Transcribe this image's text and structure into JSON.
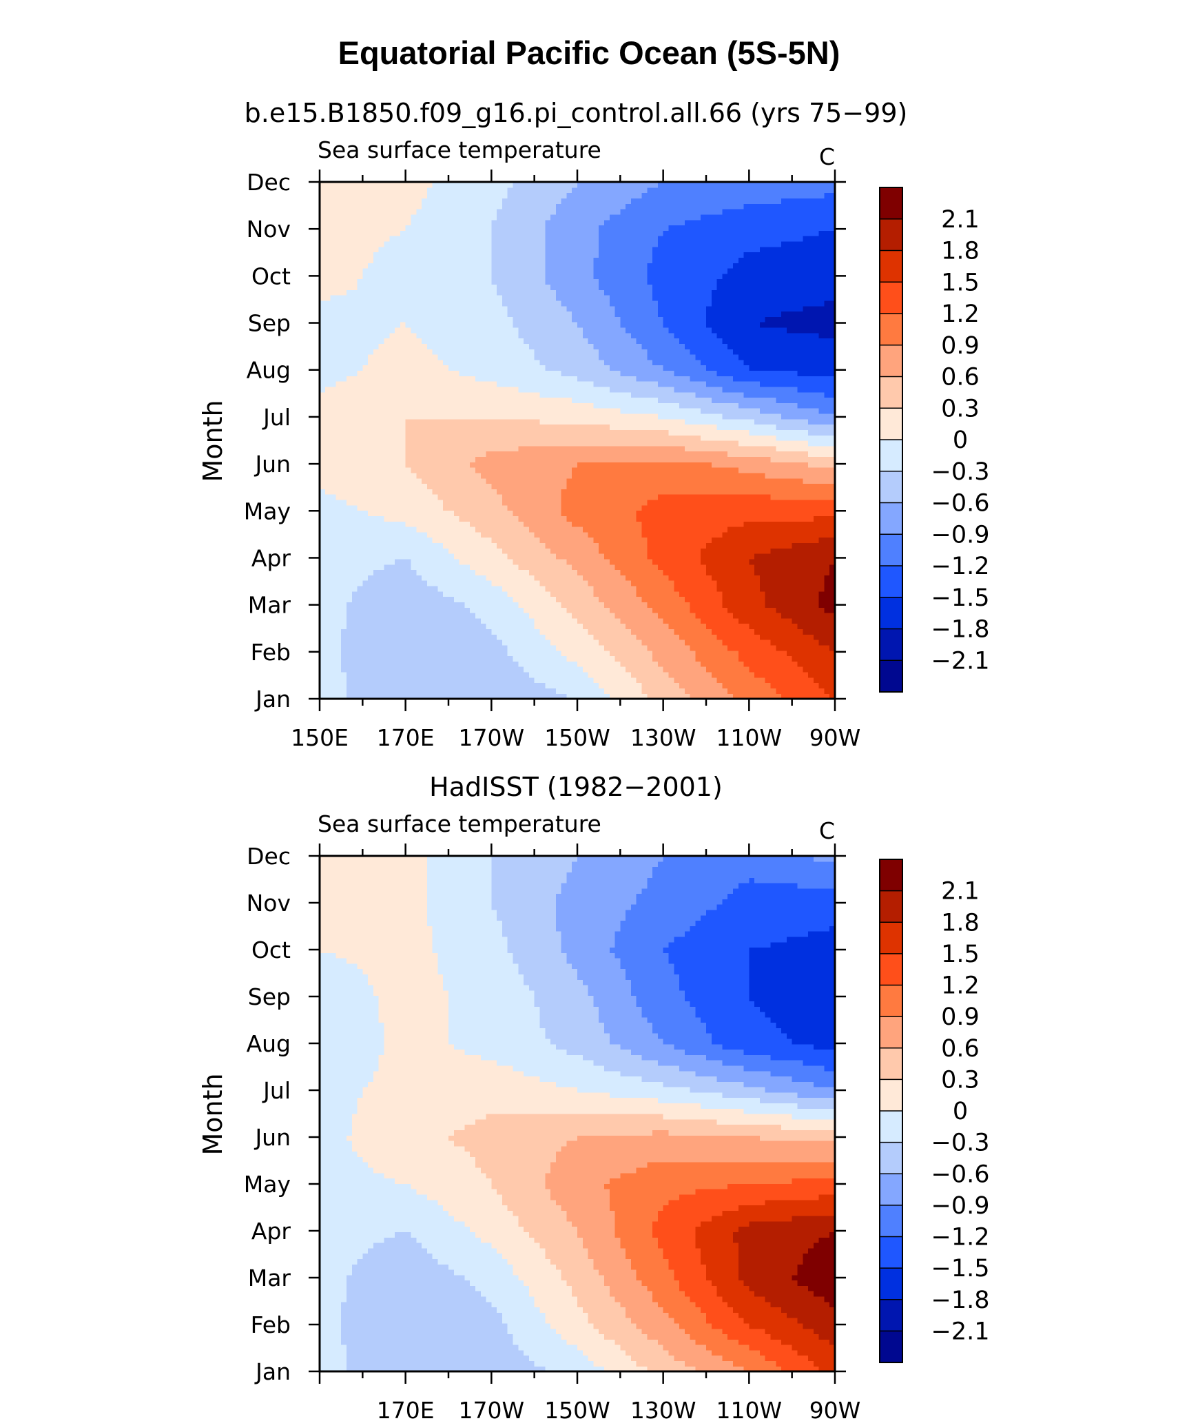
{
  "figure": {
    "title": "Equatorial Pacific Ocean (5S-5N)"
  },
  "colorbar": {
    "levels": [
      -2.1,
      -1.8,
      -1.5,
      -1.2,
      -0.9,
      -0.6,
      -0.3,
      0,
      0.3,
      0.6,
      0.9,
      1.2,
      1.5,
      1.8,
      2.1
    ],
    "labels": [
      "2.1",
      "1.8",
      "1.5",
      "1.2",
      "0.9",
      "0.6",
      "0.3",
      "0",
      "−0.3",
      "−0.6",
      "−0.9",
      "−1.2",
      "−1.5",
      "−1.8",
      "−2.1"
    ],
    "colors": [
      "#7f0000",
      "#b41e00",
      "#de3300",
      "#ff4f1a",
      "#ff7a40",
      "#ffa47d",
      "#ffc9ac",
      "#ffe9d8",
      "#d6ebff",
      "#b4ccfc",
      "#84a7ff",
      "#4f80ff",
      "#1f57ff",
      "#0030e0",
      "#0016b0",
      "#000890"
    ]
  },
  "chart_data": [
    {
      "type": "heatmap",
      "title": "b.e15.B1850.f09_g16.pi_control.all.66 (yrs 75−99)",
      "subtitle_left": "Sea surface temperature",
      "subtitle_right": "C",
      "ylabel": "Month",
      "x_tick_labels": [
        "150E",
        "170E",
        "170W",
        "150W",
        "130W",
        "110W",
        "90W"
      ],
      "y_tick_labels": [
        "Jan",
        "Feb",
        "Mar",
        "Apr",
        "May",
        "Jun",
        "Jul",
        "Aug",
        "Sep",
        "Oct",
        "Nov",
        "Dec"
      ],
      "xlim": [
        150,
        270
      ],
      "x": [
        150,
        170,
        190,
        210,
        230,
        250,
        270
      ],
      "months": [
        "Jan",
        "Feb",
        "Mar",
        "Apr",
        "May",
        "Jun",
        "Jul",
        "Aug",
        "Sep",
        "Oct",
        "Nov",
        "Dec"
      ],
      "values": [
        [
          -0.2,
          -0.5,
          -0.5,
          -0.3,
          0.4,
          1.0,
          1.5
        ],
        [
          -0.2,
          -0.6,
          -0.4,
          0.1,
          0.7,
          1.3,
          1.8
        ],
        [
          -0.2,
          -0.5,
          -0.2,
          0.4,
          1.0,
          1.7,
          2.2
        ],
        [
          -0.2,
          -0.3,
          0.2,
          0.7,
          1.3,
          1.8,
          2.1
        ],
        [
          -0.1,
          0.1,
          0.5,
          1.0,
          1.3,
          1.4,
          1.4
        ],
        [
          0.1,
          0.3,
          0.7,
          0.9,
          1.0,
          0.8,
          0.5
        ],
        [
          0.1,
          0.3,
          0.3,
          0.2,
          0.0,
          -0.4,
          -0.9
        ],
        [
          -0.1,
          0.1,
          -0.1,
          -0.4,
          -0.9,
          -1.5,
          -1.6
        ],
        [
          -0.1,
          0.0,
          -0.2,
          -0.6,
          -1.2,
          -1.8,
          -1.9
        ],
        [
          0.1,
          -0.1,
          -0.3,
          -0.8,
          -1.3,
          -1.6,
          -1.7
        ],
        [
          0.1,
          0.0,
          -0.3,
          -0.8,
          -1.2,
          -1.4,
          -1.5
        ],
        [
          0.1,
          0.1,
          -0.2,
          -0.6,
          -0.9,
          -1.0,
          -1.1
        ]
      ]
    },
    {
      "type": "heatmap",
      "title": "HadISST (1982−2001)",
      "subtitle_left": "Sea surface temperature",
      "subtitle_right": "C",
      "ylabel": "Month",
      "x_tick_labels": [
        "170E",
        "170W",
        "150W",
        "130W",
        "110W",
        "90W"
      ],
      "y_tick_labels": [
        "Jan",
        "Feb",
        "Mar",
        "Apr",
        "May",
        "Jun",
        "Jul",
        "Aug",
        "Sep",
        "Oct",
        "Nov",
        "Dec"
      ],
      "xlim": [
        150,
        270
      ],
      "x": [
        150,
        170,
        190,
        210,
        230,
        250,
        270
      ],
      "months": [
        "Jan",
        "Feb",
        "Mar",
        "Apr",
        "May",
        "Jun",
        "Jul",
        "Aug",
        "Sep",
        "Oct",
        "Nov",
        "Dec"
      ],
      "values": [
        [
          -0.2,
          -0.5,
          -0.5,
          -0.2,
          0.4,
          0.9,
          1.6
        ],
        [
          -0.2,
          -0.6,
          -0.4,
          0.2,
          0.8,
          1.5,
          2.0
        ],
        [
          -0.2,
          -0.5,
          -0.2,
          0.4,
          1.1,
          1.9,
          2.3
        ],
        [
          -0.2,
          -0.3,
          0.1,
          0.6,
          1.3,
          1.9,
          2.1
        ],
        [
          -0.1,
          0.0,
          0.3,
          0.8,
          1.1,
          1.2,
          1.3
        ],
        [
          -0.1,
          0.2,
          0.4,
          0.6,
          0.7,
          0.6,
          0.5
        ],
        [
          -0.1,
          0.1,
          0.2,
          0.0,
          -0.2,
          -0.5,
          -0.9
        ],
        [
          -0.3,
          0.1,
          -0.1,
          -0.4,
          -0.9,
          -1.4,
          -1.6
        ],
        [
          -0.2,
          0.1,
          -0.1,
          -0.5,
          -1.1,
          -1.5,
          -1.7
        ],
        [
          0.0,
          0.1,
          -0.2,
          -0.7,
          -1.2,
          -1.5,
          -1.6
        ],
        [
          0.1,
          0.1,
          -0.3,
          -0.7,
          -1.0,
          -1.3,
          -1.4
        ],
        [
          0.1,
          0.1,
          -0.3,
          -0.6,
          -0.9,
          -1.1,
          -0.8
        ]
      ]
    }
  ]
}
